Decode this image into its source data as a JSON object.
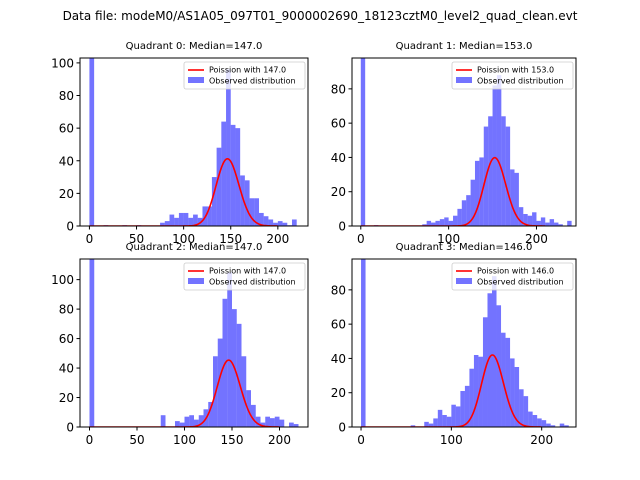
{
  "figure_title": "Data file: modeM0/AS1A05_097T01_9000002690_18123cztM0_level2_quad_clean.evt",
  "colors": {
    "hist": "#0000ff",
    "hist_alpha": 0.55,
    "poisson": "#ff0000"
  },
  "chart_data": [
    {
      "type": "bar",
      "title": "Quadrant 0: Median=147.0",
      "xlim": [
        -10,
        232
      ],
      "ylim": [
        0,
        103
      ],
      "xticks": [
        0,
        50,
        100,
        150,
        200
      ],
      "yticks": [
        0,
        20,
        40,
        60,
        80,
        100
      ],
      "bin_width": 5,
      "median": 147,
      "legend": [
        "Poission with 147.0",
        "Observed distribution"
      ],
      "series": [
        {
          "name": "Observed distribution",
          "bins": [
            [
              0,
              103
            ],
            [
              15,
              0.5
            ],
            [
              35,
              0.5
            ],
            [
              50,
              0.5
            ],
            [
              75,
              2
            ],
            [
              80,
              3
            ],
            [
              85,
              7
            ],
            [
              90,
              5
            ],
            [
              95,
              8
            ],
            [
              100,
              8
            ],
            [
              105,
              5
            ],
            [
              110,
              7
            ],
            [
              115,
              5
            ],
            [
              120,
              12
            ],
            [
              125,
              12
            ],
            [
              130,
              30
            ],
            [
              135,
              48
            ],
            [
              140,
              64
            ],
            [
              145,
              96
            ],
            [
              150,
              62
            ],
            [
              155,
              60
            ],
            [
              160,
              31
            ],
            [
              165,
              28
            ],
            [
              170,
              17
            ],
            [
              175,
              17
            ],
            [
              180,
              8
            ],
            [
              185,
              6
            ],
            [
              190,
              4
            ],
            [
              195,
              2
            ],
            [
              200,
              3
            ],
            [
              205,
              2
            ],
            [
              210,
              0.5
            ],
            [
              215,
              4
            ]
          ]
        },
        {
          "name": "Poission with 147.0",
          "lambda": 147,
          "scale": 1253,
          "x_range": [
            0,
            200
          ]
        }
      ]
    },
    {
      "type": "bar",
      "title": "Quadrant 1: Median=153.0",
      "xlim": [
        -10,
        245
      ],
      "ylim": [
        0,
        98
      ],
      "xticks": [
        0,
        100,
        200
      ],
      "yticks": [
        0,
        20,
        40,
        60,
        80
      ],
      "bin_width": 5,
      "median": 153,
      "legend": [
        "Poission with 153.0",
        "Observed distribution"
      ],
      "series": [
        {
          "name": "Observed distribution",
          "bins": [
            [
              0,
              98
            ],
            [
              15,
              0.5
            ],
            [
              70,
              1
            ],
            [
              75,
              3
            ],
            [
              80,
              2
            ],
            [
              85,
              3
            ],
            [
              90,
              4
            ],
            [
              95,
              5
            ],
            [
              100,
              3
            ],
            [
              105,
              6
            ],
            [
              110,
              10
            ],
            [
              115,
              15
            ],
            [
              120,
              18
            ],
            [
              125,
              27
            ],
            [
              130,
              38
            ],
            [
              135,
              40
            ],
            [
              140,
              58
            ],
            [
              145,
              64
            ],
            [
              150,
              82
            ],
            [
              155,
              88
            ],
            [
              160,
              64
            ],
            [
              165,
              58
            ],
            [
              170,
              33
            ],
            [
              175,
              31
            ],
            [
              180,
              11
            ],
            [
              185,
              7
            ],
            [
              190,
              6
            ],
            [
              195,
              8
            ],
            [
              200,
              3
            ],
            [
              205,
              5
            ],
            [
              210,
              2
            ],
            [
              215,
              4
            ],
            [
              220,
              2
            ],
            [
              225,
              1
            ],
            [
              235,
              3
            ]
          ]
        },
        {
          "name": "Poission with 153.0",
          "lambda": 153,
          "scale": 1236,
          "x_range": [
            0,
            210
          ]
        }
      ]
    },
    {
      "type": "bar",
      "title": "Quadrant 2: Median=147.0",
      "xlim": [
        -10,
        230
      ],
      "ylim": [
        0,
        114
      ],
      "xticks": [
        0,
        50,
        100,
        150,
        200
      ],
      "yticks": [
        0,
        20,
        40,
        60,
        80,
        100
      ],
      "bin_width": 5,
      "median": 147,
      "legend": [
        "Poission with 147.0",
        "Observed distribution"
      ],
      "series": [
        {
          "name": "Observed distribution",
          "bins": [
            [
              0,
              114
            ],
            [
              75,
              8
            ],
            [
              90,
              4
            ],
            [
              95,
              3
            ],
            [
              100,
              7
            ],
            [
              105,
              8
            ],
            [
              110,
              5
            ],
            [
              115,
              8
            ],
            [
              120,
              12
            ],
            [
              125,
              17
            ],
            [
              130,
              48
            ],
            [
              135,
              60
            ],
            [
              140,
              87
            ],
            [
              145,
              105
            ],
            [
              150,
              80
            ],
            [
              155,
              70
            ],
            [
              160,
              48
            ],
            [
              165,
              25
            ],
            [
              170,
              15
            ],
            [
              175,
              7
            ],
            [
              180,
              3
            ],
            [
              185,
              7
            ],
            [
              190,
              6
            ],
            [
              195,
              7
            ],
            [
              200,
              5
            ],
            [
              210,
              3
            ],
            [
              215,
              2
            ]
          ]
        },
        {
          "name": "Poission with 147.0",
          "lambda": 147,
          "scale": 1380,
          "x_range": [
            0,
            200
          ]
        }
      ]
    },
    {
      "type": "bar",
      "title": "Quadrant 3: Median=146.0",
      "xlim": [
        -10,
        238
      ],
      "ylim": [
        0,
        98
      ],
      "xticks": [
        0,
        100,
        200
      ],
      "yticks": [
        0,
        20,
        40,
        60,
        80
      ],
      "bin_width": 5,
      "median": 146,
      "legend": [
        "Poission with 146.0",
        "Observed distribution"
      ],
      "series": [
        {
          "name": "Observed distribution",
          "bins": [
            [
              0,
              98
            ],
            [
              55,
              1
            ],
            [
              70,
              3
            ],
            [
              75,
              2
            ],
            [
              80,
              5
            ],
            [
              85,
              10
            ],
            [
              90,
              7
            ],
            [
              95,
              6
            ],
            [
              100,
              13
            ],
            [
              105,
              12
            ],
            [
              110,
              21
            ],
            [
              115,
              24
            ],
            [
              120,
              34
            ],
            [
              125,
              42
            ],
            [
              130,
              41
            ],
            [
              135,
              64
            ],
            [
              140,
              78
            ],
            [
              145,
              88
            ],
            [
              150,
              71
            ],
            [
              155,
              55
            ],
            [
              160,
              52
            ],
            [
              165,
              40
            ],
            [
              170,
              35
            ],
            [
              175,
              22
            ],
            [
              180,
              18
            ],
            [
              185,
              9
            ],
            [
              190,
              7
            ],
            [
              195,
              5
            ],
            [
              200,
              4
            ],
            [
              205,
              2
            ],
            [
              210,
              1
            ],
            [
              220,
              2
            ],
            [
              225,
              1
            ]
          ]
        },
        {
          "name": "Poission with 146.0",
          "lambda": 146,
          "scale": 1273,
          "x_range": [
            0,
            200
          ]
        }
      ]
    }
  ]
}
